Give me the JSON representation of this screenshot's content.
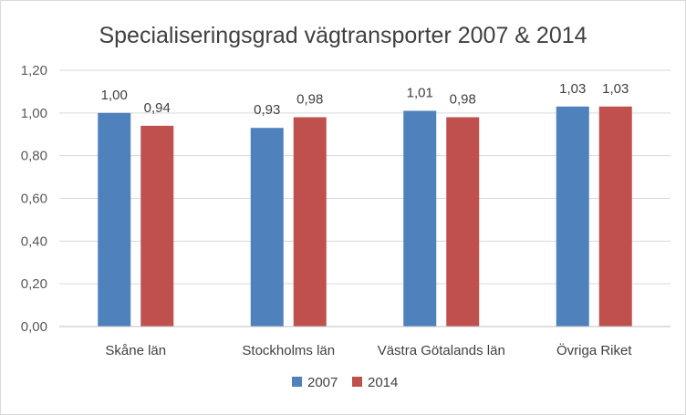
{
  "chart_data": {
    "type": "bar",
    "title": "Specialiseringsgrad vägtransporter 2007 & 2014",
    "categories": [
      "Skåne län",
      "Stockholms län",
      "Västra Götalands län",
      "Övriga Riket"
    ],
    "series": [
      {
        "name": "2007",
        "values": [
          1.0,
          0.93,
          1.01,
          1.03
        ],
        "labels": [
          "1,00",
          "0,93",
          "1,01",
          "1,03"
        ],
        "color": "#4f81bd"
      },
      {
        "name": "2014",
        "values": [
          0.94,
          0.98,
          0.98,
          1.03
        ],
        "labels": [
          "0,94",
          "0,98",
          "0,98",
          "1,03"
        ],
        "color": "#c0504d"
      }
    ],
    "ylim": [
      0,
      1.2
    ],
    "yticks": [
      0,
      0.2,
      0.4,
      0.6,
      0.8,
      1.0,
      1.2
    ],
    "ytick_labels": [
      "0,00",
      "0,20",
      "0,40",
      "0,60",
      "0,80",
      "1,00",
      "1,20"
    ],
    "grid": true,
    "legend": "bottom",
    "xlabel": "",
    "ylabel": ""
  }
}
